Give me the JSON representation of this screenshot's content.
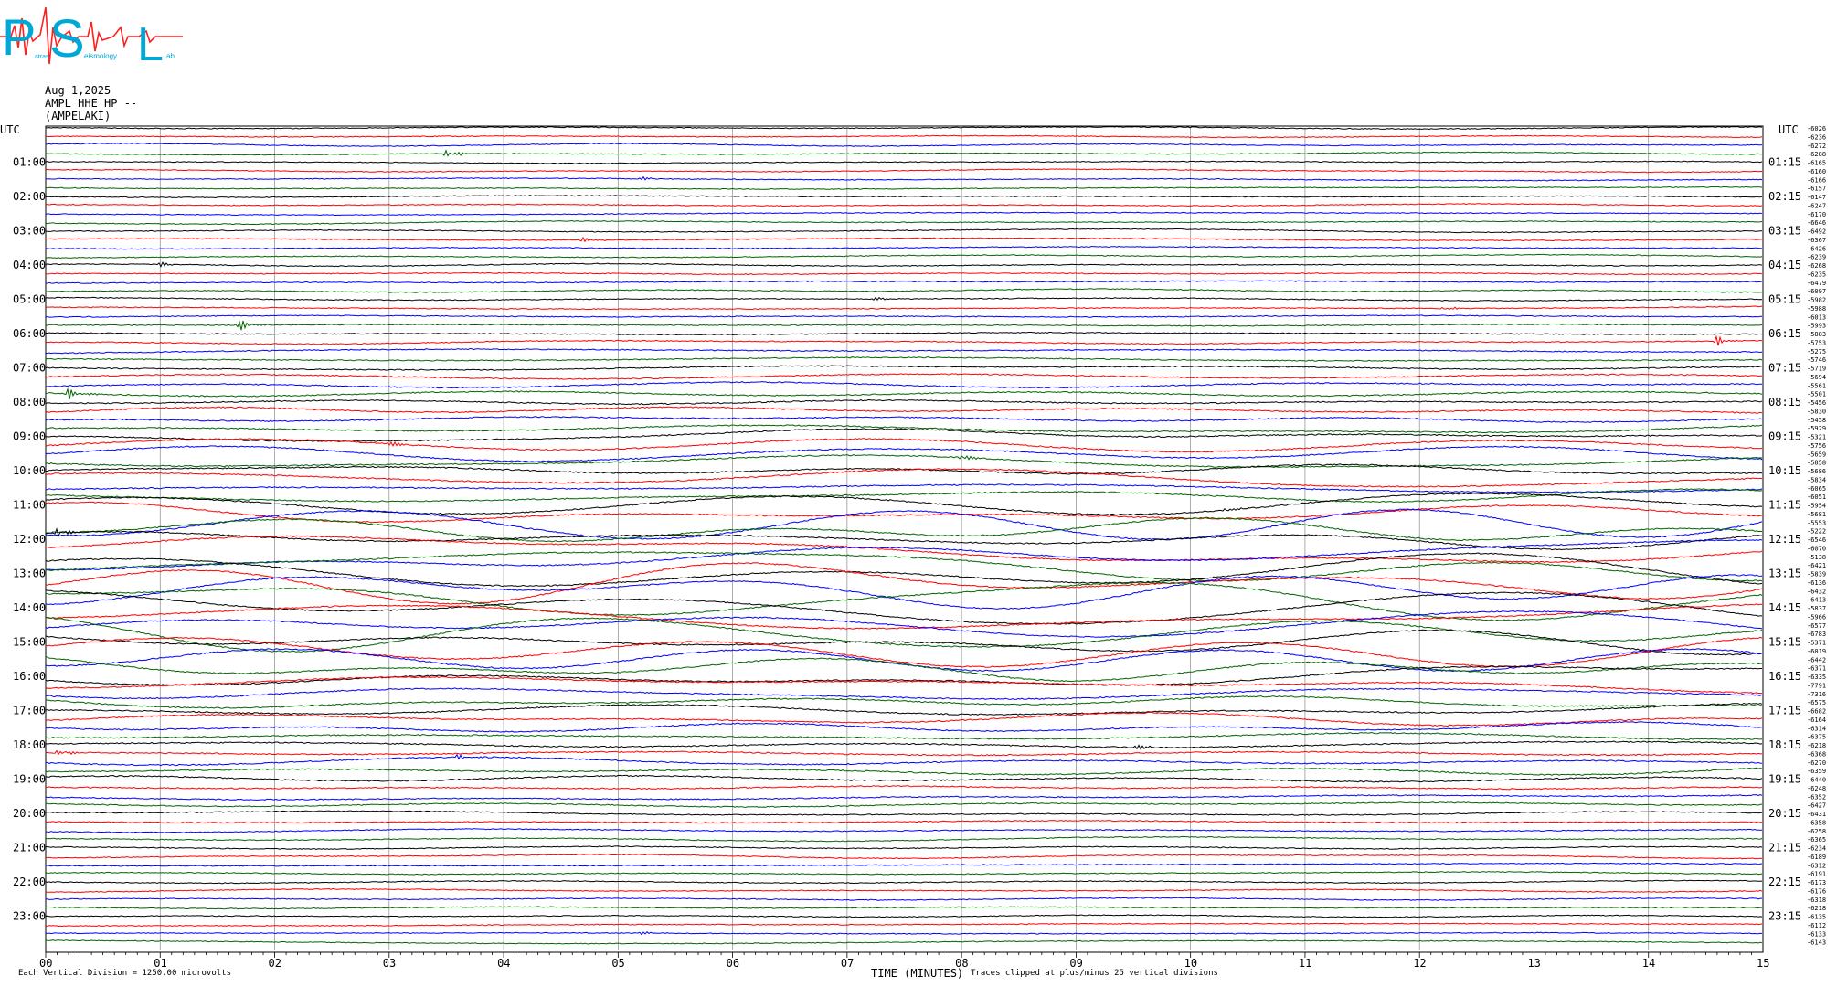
{
  "header": {
    "date": "Aug 1,2025",
    "station_line": "AMPL HHE HP --",
    "station_name": "(AMPELAKI)"
  },
  "logo": {
    "letters": [
      "P",
      "S",
      "L"
    ],
    "subtext_a": "atras",
    "subtext_b": "eismology",
    "subtext_c": "ab"
  },
  "footer": {
    "division_note": "Each Vertical Division = 1250.00 microvolts",
    "clip_note": "Traces clipped at plus/minus 25 vertical divisions"
  },
  "colors": {
    "trace_cycle": [
      "#000000",
      "#ff0000",
      "#0000ff",
      "#006400"
    ],
    "logo_cyan": "#00a8d6",
    "logo_red": "#ff2020",
    "grid": "#888888"
  },
  "chart_data": {
    "type": "line",
    "title": "",
    "xlabel": "TIME (MINUTES)",
    "ylabel_left": "UTC",
    "ylabel_right": "UTC",
    "xlim": [
      0,
      15
    ],
    "x_ticks": [
      "00",
      "01",
      "02",
      "03",
      "04",
      "05",
      "06",
      "07",
      "08",
      "09",
      "10",
      "11",
      "12",
      "13",
      "14",
      "15"
    ],
    "left_hour_labels": [
      "01:00",
      "02:00",
      "03:00",
      "04:00",
      "05:00",
      "06:00",
      "07:00",
      "08:00",
      "09:00",
      "10:00",
      "11:00",
      "12:00",
      "13:00",
      "14:00",
      "15:00",
      "16:00",
      "17:00",
      "18:00",
      "19:00",
      "20:00",
      "21:00",
      "22:00",
      "23:00"
    ],
    "right_hour_labels": [
      "01:15",
      "02:15",
      "03:15",
      "04:15",
      "05:15",
      "06:15",
      "07:15",
      "08:15",
      "09:15",
      "10:15",
      "11:15",
      "12:15",
      "13:15",
      "14:15",
      "15:15",
      "16:15",
      "17:15",
      "18:15",
      "19:15",
      "20:15",
      "21:15",
      "22:15",
      "23:15"
    ],
    "traces_per_hour": 4,
    "trace_minutes": 15,
    "grid_vertical": true,
    "trace_offsets": [
      -6026,
      -6236,
      -6272,
      -6288,
      -6165,
      -6160,
      -6166,
      -6157,
      -6147,
      -6247,
      -6170,
      -6646,
      -6492,
      -6367,
      -6426,
      -6239,
      -6268,
      -6235,
      -6479,
      -6097,
      -5982,
      -5988,
      -6013,
      -5993,
      -5883,
      -5753,
      -5275,
      -5746,
      -5719,
      -5694,
      -5561,
      -5501,
      -5456,
      -5830,
      -5458,
      -5929,
      -5321,
      -5756,
      -5659,
      -5858,
      -5686,
      -5834,
      -6065,
      -6051,
      -5954,
      -5681,
      -5553,
      -5222,
      -6546,
      -6070,
      -5138,
      -6421,
      -5839,
      -6136,
      -6432,
      -6413,
      -5837,
      -5966,
      -6577,
      -6783,
      -5371,
      -6019,
      -6442,
      -6371,
      -6335,
      -7791,
      -7316,
      -6575,
      -6682,
      -6164,
      -6314,
      -6375,
      -6218,
      -6368,
      -6270,
      -6359,
      -6440,
      -6248,
      -6352,
      -6427,
      -6431,
      -6358,
      -6258,
      -6365,
      -6234,
      -6189,
      -6312,
      -6191,
      -6173,
      -6176,
      -6318,
      -6218,
      -6135,
      -6112,
      -6133,
      -6143
    ],
    "trace_activity": [
      0.7,
      0.6,
      0.7,
      0.6,
      0.7,
      0.6,
      0.7,
      0.6,
      0.7,
      0.7,
      0.7,
      0.7,
      0.7,
      0.7,
      0.8,
      0.8,
      0.8,
      0.9,
      1.0,
      0.9,
      0.9,
      0.9,
      1.0,
      1.0,
      1.1,
      1.2,
      1.3,
      1.4,
      1.5,
      1.6,
      1.8,
      1.9,
      2.0,
      2.3,
      2.5,
      2.7,
      3.0,
      3.3,
      3.6,
      4.0,
      4.4,
      4.8,
      5.2,
      5.6,
      6.0,
      6.5,
      7.0,
      7.5,
      8.0,
      8.5,
      9.0,
      9.5,
      10.0,
      10.5,
      11.0,
      11.0,
      11.0,
      10.5,
      10.0,
      9.5,
      9.0,
      8.5,
      8.0,
      7.5,
      7.0,
      6.5,
      6.0,
      5.0,
      4.0,
      3.5,
      3.0,
      2.5,
      2.2,
      2.0,
      2.2,
      2.2,
      2.2,
      1.8,
      1.5,
      1.3,
      1.2,
      1.1,
      1.0,
      1.0,
      0.9,
      0.9,
      0.9,
      0.8,
      0.8,
      0.8,
      0.8,
      0.8,
      0.7,
      0.7,
      0.7,
      0.7
    ],
    "events": [
      {
        "trace": 3,
        "minute": 3.5,
        "amp": 6
      },
      {
        "trace": 6,
        "minute": 5.2,
        "amp": 2
      },
      {
        "trace": 13,
        "minute": 4.7,
        "amp": 3
      },
      {
        "trace": 16,
        "minute": 1.0,
        "amp": 3
      },
      {
        "trace": 20,
        "minute": 7.2,
        "amp": 3
      },
      {
        "trace": 21,
        "minute": 12.2,
        "amp": 3
      },
      {
        "trace": 23,
        "minute": 1.7,
        "amp": 8
      },
      {
        "trace": 25,
        "minute": 14.6,
        "amp": 5
      },
      {
        "trace": 31,
        "minute": 0.2,
        "amp": 6
      },
      {
        "trace": 37,
        "minute": 3.0,
        "amp": 4
      },
      {
        "trace": 39,
        "minute": 8.0,
        "amp": 5
      },
      {
        "trace": 44,
        "minute": 10.3,
        "amp": 4
      },
      {
        "trace": 48,
        "minute": 0.1,
        "amp": 6
      },
      {
        "trace": 72,
        "minute": 9.5,
        "amp": 5
      },
      {
        "trace": 73,
        "minute": 0.1,
        "amp": 4
      },
      {
        "trace": 74,
        "minute": 3.6,
        "amp": 3
      },
      {
        "trace": 94,
        "minute": 5.2,
        "amp": 2
      }
    ]
  }
}
